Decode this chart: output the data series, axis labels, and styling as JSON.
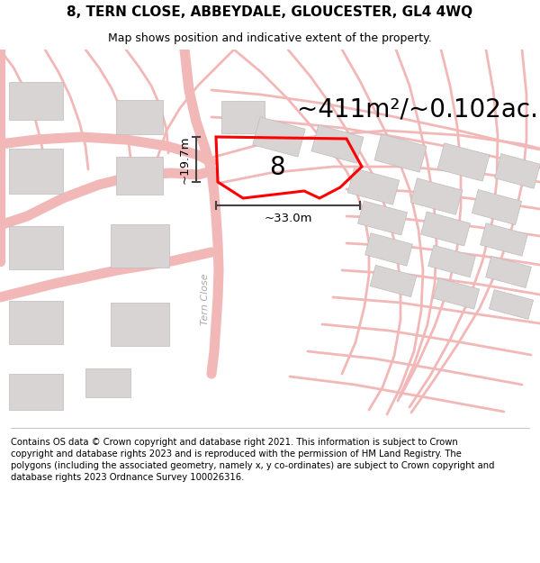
{
  "title": "8, TERN CLOSE, ABBEYDALE, GLOUCESTER, GL4 4WQ",
  "subtitle": "Map shows position and indicative extent of the property.",
  "footer": "Contains OS data © Crown copyright and database right 2021. This information is subject to Crown copyright and database rights 2023 and is reproduced with the permission of HM Land Registry. The polygons (including the associated geometry, namely x, y co-ordinates) are subject to Crown copyright and database rights 2023 Ordnance Survey 100026316.",
  "area_label": "~411m²/~0.102ac.",
  "width_label": "~33.0m",
  "height_label": "~19.7m",
  "plot_number": "8",
  "map_bg": "#ffffff",
  "road_color": "#f2b8b8",
  "building_color": "#d8d4d4",
  "building_edge": "#c0bcbc",
  "highlight_color": "#ff0000",
  "line_color": "#444444",
  "road_label": "Tern Close",
  "title_fontsize": 11,
  "subtitle_fontsize": 9,
  "footer_fontsize": 7.2,
  "area_fontsize": 20,
  "dim_fontsize": 9.5,
  "plot_num_fontsize": 20,
  "road_label_fontsize": 8,
  "road_lw": 6,
  "thin_lw": 2
}
